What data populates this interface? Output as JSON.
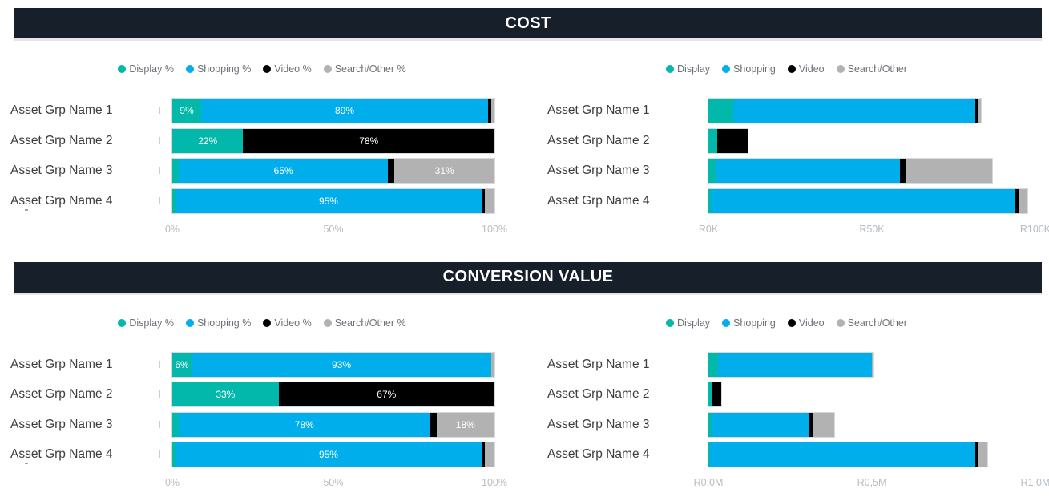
{
  "palette": {
    "display": "#01b8aa",
    "shopping": "#00aeec",
    "video": "#000000",
    "search_other": "#b2b2b2"
  },
  "sections": [
    {
      "title": "COST"
    },
    {
      "title": "CONVERSION VALUE"
    }
  ],
  "chart_data": [
    {
      "type": "bar",
      "subtype": "horizontal_stacked_100pct",
      "section": "COST",
      "legend_position": "top-center",
      "show_labels": true,
      "unit": "%",
      "xlim": [
        0,
        100
      ],
      "x_ticks": [
        "0%",
        "50%",
        "100%"
      ],
      "categories": [
        "Asset Grp Name 1",
        "Asset Grp Name 2",
        "Asset Grp Name 3",
        "Asset Grp Name 4"
      ],
      "series": [
        {
          "name": "Display %",
          "color": "display",
          "values": [
            9,
            22,
            2,
            1
          ]
        },
        {
          "name": "Shopping %",
          "color": "shopping",
          "values": [
            89,
            0,
            65,
            95
          ]
        },
        {
          "name": "Video %",
          "color": "video",
          "values": [
            1,
            78,
            2,
            1
          ]
        },
        {
          "name": "Search/Other %",
          "color": "search_other",
          "values": [
            1,
            0,
            31,
            3
          ]
        }
      ]
    },
    {
      "type": "bar",
      "subtype": "horizontal_stacked",
      "section": "COST",
      "legend_position": "top-center",
      "show_labels": false,
      "unit": "R thousands",
      "xlim": [
        0,
        100
      ],
      "x_ticks": [
        "R0K",
        "R50K",
        "R100K"
      ],
      "categories": [
        "Asset Grp Name 1",
        "Asset Grp Name 2",
        "Asset Grp Name 3",
        "Asset Grp Name 4"
      ],
      "series": [
        {
          "name": "Display",
          "color": "display",
          "values": [
            7.6,
            2.6,
            2.2,
            0.8
          ]
        },
        {
          "name": "Shopping",
          "color": "shopping",
          "values": [
            74.0,
            0,
            56.4,
            92.9
          ]
        },
        {
          "name": "Video",
          "color": "video",
          "values": [
            0.7,
            9.5,
            1.7,
            1.2
          ]
        },
        {
          "name": "Search/Other",
          "color": "search_other",
          "values": [
            1.0,
            0,
            26.5,
            2.7
          ]
        }
      ]
    },
    {
      "type": "bar",
      "subtype": "horizontal_stacked_100pct",
      "section": "CONVERSION VALUE",
      "legend_position": "top-center",
      "show_labels": true,
      "unit": "%",
      "xlim": [
        0,
        100
      ],
      "x_ticks": [
        "0%",
        "50%",
        "100%"
      ],
      "categories": [
        "Asset Grp Name 1",
        "Asset Grp Name 2",
        "Asset Grp Name 3",
        "Asset Grp Name 4"
      ],
      "series": [
        {
          "name": "Display %",
          "color": "display",
          "values": [
            6,
            33,
            2,
            1
          ]
        },
        {
          "name": "Shopping %",
          "color": "shopping",
          "values": [
            93,
            0,
            78,
            95
          ]
        },
        {
          "name": "Video %",
          "color": "video",
          "values": [
            0,
            67,
            2,
            1
          ]
        },
        {
          "name": "Search/Other %",
          "color": "search_other",
          "values": [
            1,
            0,
            18,
            3
          ]
        }
      ]
    },
    {
      "type": "bar",
      "subtype": "horizontal_stacked",
      "section": "CONVERSION VALUE",
      "legend_position": "top-center",
      "show_labels": false,
      "unit": "R millions",
      "xlim": [
        0,
        1.0
      ],
      "x_ticks": [
        "R0,0M",
        "R0,5M",
        "R1,0M"
      ],
      "categories": [
        "Asset Grp Name 1",
        "Asset Grp Name 2",
        "Asset Grp Name 3",
        "Asset Grp Name 4"
      ],
      "series": [
        {
          "name": "Display",
          "color": "display",
          "values": [
            0.03,
            0.013,
            0.01,
            0.005
          ]
        },
        {
          "name": "Shopping",
          "color": "shopping",
          "values": [
            0.47,
            0,
            0.3,
            0.81
          ]
        },
        {
          "name": "Video",
          "color": "video",
          "values": [
            0,
            0.027,
            0.01,
            0.008
          ]
        },
        {
          "name": "Search/Other",
          "color": "search_other",
          "values": [
            0.006,
            0,
            0.065,
            0.03
          ]
        }
      ]
    }
  ]
}
